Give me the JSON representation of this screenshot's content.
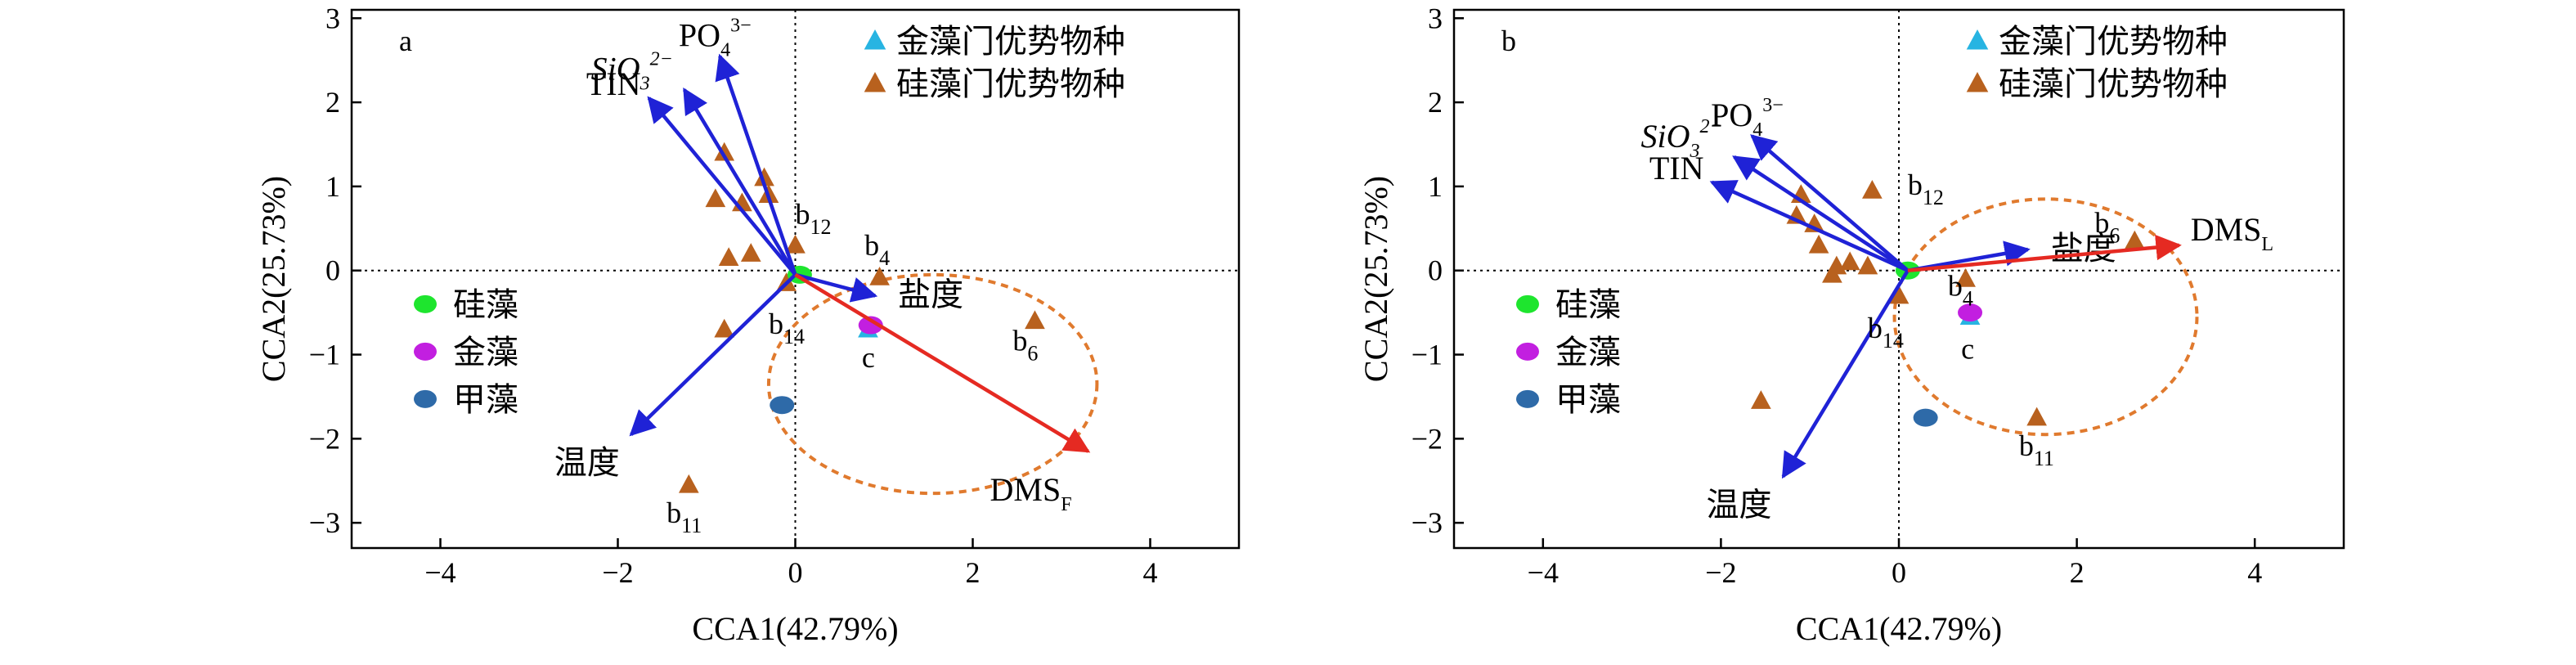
{
  "colors": {
    "axis": "#000000",
    "guide": "#000000",
    "env_arrow": "#1f22d6",
    "dms_arrow": "#e52a22",
    "ellipse": "#e07a2e",
    "diatom_species": "#b8611e",
    "chryso_species": "#27b4e2",
    "diatom_point": "#1ee52e",
    "chryso_point": "#c21fe0",
    "dino_point": "#2e6aa8"
  },
  "chart_data": [
    {
      "type": "scatter",
      "panel_label": "a",
      "xlabel": "CCA1(42.79%)",
      "ylabel": "CCA2(25.73%)",
      "xlim": [
        -5,
        5
      ],
      "ylim": [
        -3.3,
        3.1
      ],
      "xticks": [
        -4,
        -2,
        0,
        2,
        4
      ],
      "yticks": [
        -3,
        -2,
        -1,
        0,
        1,
        2,
        3
      ],
      "xtick_labels": [
        "−4",
        "−2",
        "0",
        "2",
        "4"
      ],
      "ytick_labels": [
        "−3",
        "−2",
        "−1",
        "0",
        "1",
        "2",
        "3"
      ],
      "legend_species": [
        {
          "label": "金藻门优势物种",
          "marker": "triangle",
          "color": "#27b4e2"
        },
        {
          "label": "硅藻门优势物种",
          "marker": "triangle",
          "color": "#b8611e"
        }
      ],
      "legend_groups": [
        {
          "label": "硅藻",
          "marker": "ellipse",
          "color": "#1ee52e"
        },
        {
          "label": "金藻",
          "marker": "ellipse",
          "color": "#c21fe0"
        },
        {
          "label": "甲藻",
          "marker": "ellipse",
          "color": "#2e6aa8"
        }
      ],
      "origin_point": {
        "x": 0.0,
        "y": -0.05
      },
      "env_vectors": [
        {
          "label": "TIN",
          "x": -1.65,
          "y": 2.05
        },
        {
          "label": "SiO",
          "sup": "2−",
          "sub": "3",
          "x": -1.25,
          "y": 2.15
        },
        {
          "label": "PO",
          "sup": "3−",
          "sub": "4",
          "x": -0.85,
          "y": 2.55
        },
        {
          "label": "温度",
          "x": -1.85,
          "y": -1.95
        },
        {
          "label": "盐度",
          "x": 0.9,
          "y": -0.3
        }
      ],
      "response_vector": {
        "label": "DMS",
        "sub": "F",
        "x": 3.3,
        "y": -2.15
      },
      "diatom_species": [
        {
          "x": -0.8,
          "y": 1.4
        },
        {
          "x": -0.35,
          "y": 1.1
        },
        {
          "x": -0.3,
          "y": 0.9
        },
        {
          "x": -0.9,
          "y": 0.85
        },
        {
          "x": -0.6,
          "y": 0.8
        },
        {
          "x": 0.0,
          "y": 0.3
        },
        {
          "x": -0.75,
          "y": 0.15
        },
        {
          "x": -0.5,
          "y": 0.2
        },
        {
          "x": -0.1,
          "y": -0.15
        },
        {
          "x": -0.8,
          "y": -0.7
        },
        {
          "x": 0.95,
          "y": -0.08
        },
        {
          "x": 2.7,
          "y": -0.6
        },
        {
          "x": -1.2,
          "y": -2.55
        }
      ],
      "chryso_species": [
        {
          "x": 0.82,
          "y": -0.7
        }
      ],
      "group_points": [
        {
          "group": "硅藻",
          "x": 0.05,
          "y": -0.05
        },
        {
          "group": "金藻",
          "x": 0.85,
          "y": -0.65
        },
        {
          "group": "甲藻",
          "x": -0.15,
          "y": -1.6
        }
      ],
      "point_labels": [
        {
          "text": "b",
          "sub": "12",
          "x": 0.0,
          "y": 0.55
        },
        {
          "text": "b",
          "sub": "4",
          "x": 0.78,
          "y": 0.18
        },
        {
          "text": "b",
          "sub": "14",
          "x": -0.3,
          "y": -0.75
        },
        {
          "text": "c",
          "sub": "",
          "x": 0.75,
          "y": -1.15
        },
        {
          "text": "b",
          "sub": "6",
          "x": 2.45,
          "y": -0.95
        },
        {
          "text": "b",
          "sub": "11",
          "x": -1.45,
          "y": -3.0
        }
      ],
      "ellipse": {
        "cx": 1.55,
        "cy": -1.35,
        "rx": 1.85,
        "ry": 1.3
      }
    },
    {
      "type": "scatter",
      "panel_label": "b",
      "xlabel": "CCA1(42.79%)",
      "ylabel": "CCA2(25.73%)",
      "xlim": [
        -5,
        5
      ],
      "ylim": [
        -3.3,
        3.1
      ],
      "xticks": [
        -4,
        -2,
        0,
        2,
        4
      ],
      "yticks": [
        -3,
        -2,
        -1,
        0,
        1,
        2,
        3
      ],
      "xtick_labels": [
        "−4",
        "−2",
        "0",
        "2",
        "4"
      ],
      "ytick_labels": [
        "−3",
        "−2",
        "−1",
        "0",
        "1",
        "2",
        "3"
      ],
      "legend_species": [
        {
          "label": "金藻门优势物种",
          "marker": "triangle",
          "color": "#27b4e2"
        },
        {
          "label": "硅藻门优势物种",
          "marker": "triangle",
          "color": "#b8611e"
        }
      ],
      "legend_groups": [
        {
          "label": "硅藻",
          "marker": "ellipse",
          "color": "#1ee52e"
        },
        {
          "label": "金藻",
          "marker": "ellipse",
          "color": "#c21fe0"
        },
        {
          "label": "甲藻",
          "marker": "ellipse",
          "color": "#2e6aa8"
        }
      ],
      "origin_point": {
        "x": 0.1,
        "y": 0.0
      },
      "env_vectors": [
        {
          "label": "TIN",
          "x": -2.1,
          "y": 1.05
        },
        {
          "label": "SiO",
          "sup": "2−",
          "sub": "3",
          "x": -1.85,
          "y": 1.35
        },
        {
          "label": "PO",
          "sup": "3−",
          "sub": "4",
          "x": -1.65,
          "y": 1.6
        },
        {
          "label": "温度",
          "x": -1.3,
          "y": -2.45
        },
        {
          "label": "盐度",
          "x": 1.45,
          "y": 0.25
        }
      ],
      "response_vector": {
        "label": "DMS",
        "sub": "L",
        "x": 3.15,
        "y": 0.3
      },
      "diatom_species": [
        {
          "x": -1.1,
          "y": 0.9
        },
        {
          "x": -1.15,
          "y": 0.65
        },
        {
          "x": -0.95,
          "y": 0.55
        },
        {
          "x": -0.9,
          "y": 0.3
        },
        {
          "x": -0.7,
          "y": 0.05
        },
        {
          "x": -0.35,
          "y": 0.05
        },
        {
          "x": -0.75,
          "y": -0.05
        },
        {
          "x": -0.55,
          "y": 0.1
        },
        {
          "x": 0.0,
          "y": -0.3
        },
        {
          "x": -0.3,
          "y": 0.95
        },
        {
          "x": 0.75,
          "y": -0.1
        },
        {
          "x": 2.65,
          "y": 0.35
        },
        {
          "x": -1.55,
          "y": -1.55
        },
        {
          "x": 1.55,
          "y": -1.75
        }
      ],
      "chryso_species": [
        {
          "x": 0.8,
          "y": -0.55
        }
      ],
      "group_points": [
        {
          "group": "硅藻",
          "x": 0.1,
          "y": 0.0
        },
        {
          "group": "金藻",
          "x": 0.8,
          "y": -0.5
        },
        {
          "group": "甲藻",
          "x": 0.3,
          "y": -1.75
        }
      ],
      "point_labels": [
        {
          "text": "b",
          "sub": "12",
          "x": 0.1,
          "y": 0.9
        },
        {
          "text": "b",
          "sub": "4",
          "x": 0.55,
          "y": -0.3
        },
        {
          "text": "b",
          "sub": "14",
          "x": -0.35,
          "y": -0.8
        },
        {
          "text": "c",
          "sub": "",
          "x": 0.7,
          "y": -1.05
        },
        {
          "text": "b",
          "sub": "6",
          "x": 2.2,
          "y": 0.45
        },
        {
          "text": "b",
          "sub": "11",
          "x": 1.35,
          "y": -2.2
        }
      ],
      "ellipse": {
        "cx": 1.65,
        "cy": -0.55,
        "rx": 1.7,
        "ry": 1.4
      }
    }
  ]
}
